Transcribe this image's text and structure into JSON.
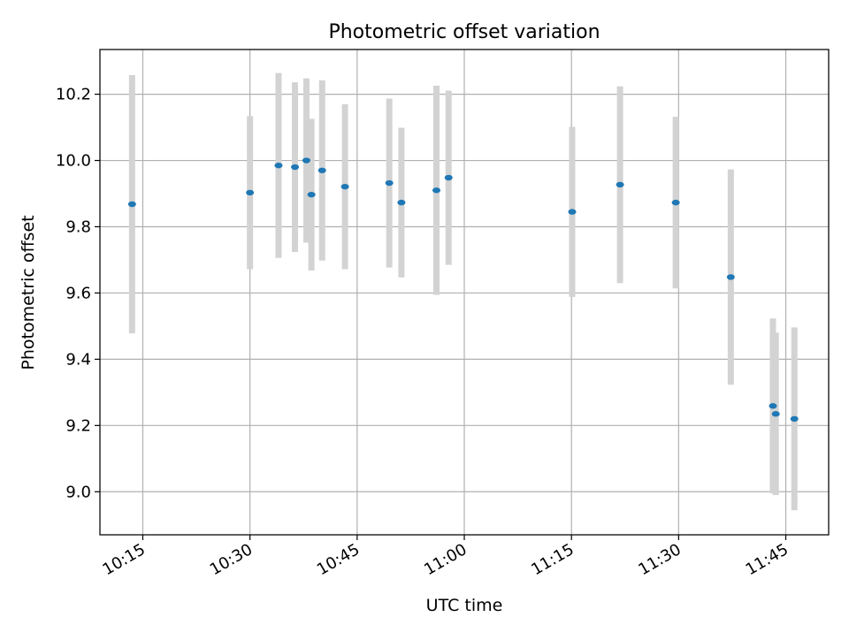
{
  "chart_data": {
    "type": "scatter",
    "title": "Photometric offset variation",
    "xlabel": "UTC time",
    "ylabel": "Photometric offset",
    "x_axis": {
      "kind": "time",
      "range": [
        "10:09",
        "11:51"
      ],
      "ticks": [
        "10:15",
        "10:30",
        "10:45",
        "11:00",
        "11:15",
        "11:30",
        "11:45"
      ]
    },
    "y_axis": {
      "range": [
        8.87,
        10.335
      ],
      "ticks": [
        9.0,
        9.2,
        9.4,
        9.6,
        9.8,
        10.0,
        10.2
      ],
      "tick_labels": [
        "9.0",
        "9.2",
        "9.4",
        "9.6",
        "9.8",
        "10.0",
        "10.2"
      ]
    },
    "grid": true,
    "legend": "none",
    "colors": {
      "point": "#1f77b4",
      "errorbar": "#d3d3d3",
      "grid": "#b0b0b0"
    },
    "points": [
      {
        "time": "10:13.5",
        "y": 9.868,
        "yerr_low": 9.478,
        "yerr_high": 10.258
      },
      {
        "time": "10:30.0",
        "y": 9.903,
        "yerr_low": 9.672,
        "yerr_high": 10.134
      },
      {
        "time": "10:34.0",
        "y": 9.985,
        "yerr_low": 9.706,
        "yerr_high": 10.264
      },
      {
        "time": "10:36.3",
        "y": 9.98,
        "yerr_low": 9.724,
        "yerr_high": 10.236
      },
      {
        "time": "10:37.9",
        "y": 10.0,
        "yerr_low": 9.752,
        "yerr_high": 10.248
      },
      {
        "time": "10:38.6",
        "y": 9.897,
        "yerr_low": 9.668,
        "yerr_high": 10.126
      },
      {
        "time": "10:40.1",
        "y": 9.97,
        "yerr_low": 9.698,
        "yerr_high": 10.242
      },
      {
        "time": "10:43.3",
        "y": 9.921,
        "yerr_low": 9.672,
        "yerr_high": 10.17
      },
      {
        "time": "10:49.5",
        "y": 9.932,
        "yerr_low": 9.677,
        "yerr_high": 10.187
      },
      {
        "time": "10:51.2",
        "y": 9.873,
        "yerr_low": 9.647,
        "yerr_high": 10.099
      },
      {
        "time": "10:56.1",
        "y": 9.91,
        "yerr_low": 9.594,
        "yerr_high": 10.226
      },
      {
        "time": "10:57.8",
        "y": 9.948,
        "yerr_low": 9.685,
        "yerr_high": 10.211
      },
      {
        "time": "11:15.1",
        "y": 9.845,
        "yerr_low": 9.588,
        "yerr_high": 10.102
      },
      {
        "time": "11:21.8",
        "y": 9.927,
        "yerr_low": 9.63,
        "yerr_high": 10.224
      },
      {
        "time": "11:29.6",
        "y": 9.873,
        "yerr_low": 9.614,
        "yerr_high": 10.132
      },
      {
        "time": "11:37.3",
        "y": 9.648,
        "yerr_low": 9.323,
        "yerr_high": 9.973
      },
      {
        "time": "11:43.2",
        "y": 9.259,
        "yerr_low": 8.995,
        "yerr_high": 9.523
      },
      {
        "time": "11:43.6",
        "y": 9.235,
        "yerr_low": 8.99,
        "yerr_high": 9.48
      },
      {
        "time": "11:46.2",
        "y": 9.22,
        "yerr_low": 8.944,
        "yerr_high": 9.496
      }
    ]
  }
}
